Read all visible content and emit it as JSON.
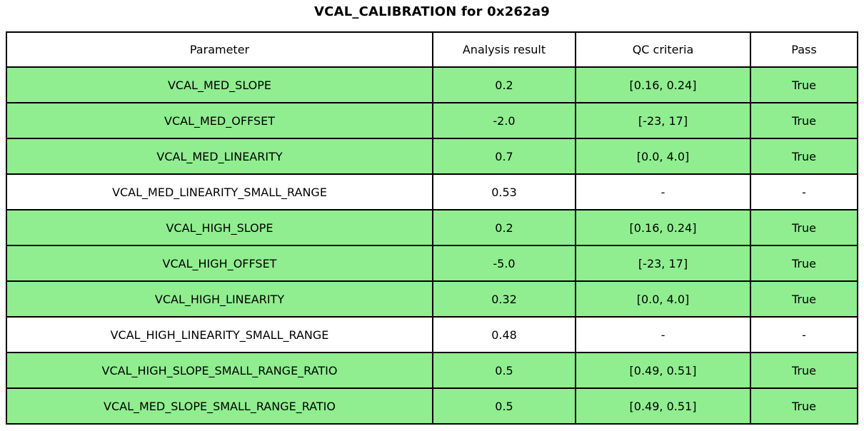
{
  "title": "VCAL_CALIBRATION for 0x262a9",
  "colors": {
    "row_highlight": "#90EE90",
    "border": "#000000",
    "background": "#ffffff"
  },
  "chart_data": {
    "type": "table",
    "title": "VCAL_CALIBRATION for 0x262a9",
    "headers": [
      "Parameter",
      "Analysis result",
      "QC criteria",
      "Pass"
    ],
    "rows": [
      {
        "parameter": "VCAL_MED_SLOPE",
        "result": "0.2",
        "criteria": "[0.16, 0.24]",
        "pass": "True",
        "highlight": true
      },
      {
        "parameter": "VCAL_MED_OFFSET",
        "result": "-2.0",
        "criteria": "[-23, 17]",
        "pass": "True",
        "highlight": true
      },
      {
        "parameter": "VCAL_MED_LINEARITY",
        "result": "0.7",
        "criteria": "[0.0, 4.0]",
        "pass": "True",
        "highlight": true
      },
      {
        "parameter": "VCAL_MED_LINEARITY_SMALL_RANGE",
        "result": "0.53",
        "criteria": "-",
        "pass": "-",
        "highlight": false
      },
      {
        "parameter": "VCAL_HIGH_SLOPE",
        "result": "0.2",
        "criteria": "[0.16, 0.24]",
        "pass": "True",
        "highlight": true
      },
      {
        "parameter": "VCAL_HIGH_OFFSET",
        "result": "-5.0",
        "criteria": "[-23, 17]",
        "pass": "True",
        "highlight": true
      },
      {
        "parameter": "VCAL_HIGH_LINEARITY",
        "result": "0.32",
        "criteria": "[0.0, 4.0]",
        "pass": "True",
        "highlight": true
      },
      {
        "parameter": "VCAL_HIGH_LINEARITY_SMALL_RANGE",
        "result": "0.48",
        "criteria": "-",
        "pass": "-",
        "highlight": false
      },
      {
        "parameter": "VCAL_HIGH_SLOPE_SMALL_RANGE_RATIO",
        "result": "0.5",
        "criteria": "[0.49, 0.51]",
        "pass": "True",
        "highlight": true
      },
      {
        "parameter": "VCAL_MED_SLOPE_SMALL_RANGE_RATIO",
        "result": "0.5",
        "criteria": "[0.49, 0.51]",
        "pass": "True",
        "highlight": true
      }
    ]
  }
}
